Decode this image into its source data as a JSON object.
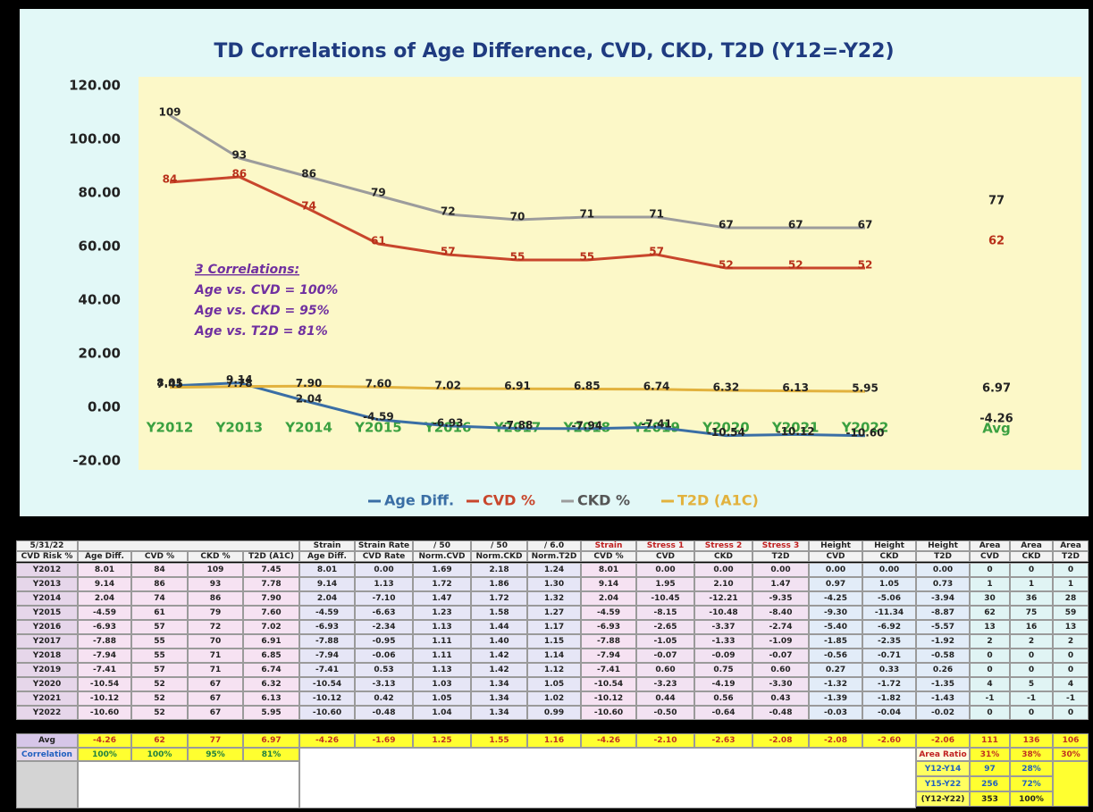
{
  "chart_data": {
    "type": "line",
    "title": "TD Correlations of Age Difference, CVD, CKD, T2D  (Y12=-Y22)",
    "categories": [
      "Y2012",
      "Y2013",
      "Y2014",
      "Y2015",
      "Y2016",
      "Y2017",
      "Y2018",
      "Y2019",
      "Y2020",
      "Y2021",
      "Y2022"
    ],
    "avg_label": "Avg",
    "series": [
      {
        "name": "Age Diff.",
        "color": "#3a6ea5",
        "values": [
          8.01,
          9.14,
          2.04,
          -4.59,
          -6.93,
          -7.88,
          -7.94,
          -7.41,
          -10.54,
          -10.12,
          -10.6
        ],
        "value_labels": [
          "8.01",
          "9.14",
          "2.04",
          "-4.59",
          "-6.93",
          "-7.88",
          "-7.94",
          "-7.41",
          "-10.54",
          "-10.12",
          "-10.60"
        ],
        "avg": -4.26
      },
      {
        "name": "CVD %",
        "color": "#c8462c",
        "values": [
          84,
          86,
          74,
          61,
          57,
          55,
          55,
          57,
          52,
          52,
          52
        ],
        "avg": 62
      },
      {
        "name": "CKD %",
        "color": "#9c9c9c",
        "values": [
          109,
          93,
          86,
          79,
          72,
          70,
          71,
          71,
          67,
          67,
          67
        ],
        "avg": 77
      },
      {
        "name": "T2D (A1C)",
        "color": "#e2b23e",
        "values": [
          7.45,
          7.78,
          7.9,
          7.6,
          7.02,
          6.91,
          6.85,
          6.74,
          6.32,
          6.13,
          5.95
        ],
        "value_labels": [
          "7.45",
          "7.78",
          "7.90",
          "7.60",
          "7.02",
          "6.91",
          "6.85",
          "6.74",
          "6.32",
          "6.13",
          "5.95"
        ],
        "avg": 6.97
      }
    ],
    "ylim": [
      -20,
      120
    ],
    "yticks": [
      {
        "value": -20,
        "label": "-20.00"
      },
      {
        "value": 0,
        "label": "0.00"
      },
      {
        "value": 20,
        "label": "20.00"
      },
      {
        "value": 40,
        "label": "40.00"
      },
      {
        "value": 60,
        "label": "60.00"
      },
      {
        "value": 80,
        "label": "80.00"
      },
      {
        "value": 100,
        "label": "100.00"
      },
      {
        "value": 120,
        "label": "120.00"
      }
    ],
    "grid": false,
    "legend": "bottom",
    "annotations": [
      "3 Correlations:",
      "Age vs. CVD = 100%",
      "Age vs. CKD = 95%",
      "Age vs. T2D = 81%"
    ]
  },
  "table": {
    "date": "5/31/22",
    "group_headers": [
      "Strain",
      "Strain Rate",
      "/ 50",
      "/ 50",
      "/ 6.0",
      "Strain",
      "Stress 1",
      "Stress 2",
      "Stress 3",
      "Height",
      "Height",
      "Height",
      "Area",
      "Area",
      "Area"
    ],
    "row_header": "CVD Risk %",
    "columns": [
      "Age Diff.",
      "CVD %",
      "CKD %",
      "T2D (A1C)",
      "Age Diff.",
      "CVD Rate",
      "Norm.CVD",
      "Norm.CKD",
      "Norm.T2D",
      "CVD %",
      "CVD",
      "CKD",
      "T2D",
      "CVD",
      "CKD",
      "T2D",
      "CVD",
      "CKD",
      "T2D"
    ],
    "rows": [
      {
        "label": "Y2012",
        "cells": [
          "8.01",
          "84",
          "109",
          "7.45",
          "8.01",
          "0.00",
          "1.69",
          "2.18",
          "1.24",
          "8.01",
          "0.00",
          "0.00",
          "0.00",
          "0.00",
          "0.00",
          "0.00",
          "0",
          "0",
          "0"
        ]
      },
      {
        "label": "Y2013",
        "cells": [
          "9.14",
          "86",
          "93",
          "7.78",
          "9.14",
          "1.13",
          "1.72",
          "1.86",
          "1.30",
          "9.14",
          "1.95",
          "2.10",
          "1.47",
          "0.97",
          "1.05",
          "0.73",
          "1",
          "1",
          "1"
        ]
      },
      {
        "label": "Y2014",
        "cells": [
          "2.04",
          "74",
          "86",
          "7.90",
          "2.04",
          "-7.10",
          "1.47",
          "1.72",
          "1.32",
          "2.04",
          "-10.45",
          "-12.21",
          "-9.35",
          "-4.25",
          "-5.06",
          "-3.94",
          "30",
          "36",
          "28"
        ]
      },
      {
        "label": "Y2015",
        "cells": [
          "-4.59",
          "61",
          "79",
          "7.60",
          "-4.59",
          "-6.63",
          "1.23",
          "1.58",
          "1.27",
          "-4.59",
          "-8.15",
          "-10.48",
          "-8.40",
          "-9.30",
          "-11.34",
          "-8.87",
          "62",
          "75",
          "59"
        ]
      },
      {
        "label": "Y2016",
        "cells": [
          "-6.93",
          "57",
          "72",
          "7.02",
          "-6.93",
          "-2.34",
          "1.13",
          "1.44",
          "1.17",
          "-6.93",
          "-2.65",
          "-3.37",
          "-2.74",
          "-5.40",
          "-6.92",
          "-5.57",
          "13",
          "16",
          "13"
        ]
      },
      {
        "label": "Y2017",
        "cells": [
          "-7.88",
          "55",
          "70",
          "6.91",
          "-7.88",
          "-0.95",
          "1.11",
          "1.40",
          "1.15",
          "-7.88",
          "-1.05",
          "-1.33",
          "-1.09",
          "-1.85",
          "-2.35",
          "-1.92",
          "2",
          "2",
          "2"
        ]
      },
      {
        "label": "Y2018",
        "cells": [
          "-7.94",
          "55",
          "71",
          "6.85",
          "-7.94",
          "-0.06",
          "1.11",
          "1.42",
          "1.14",
          "-7.94",
          "-0.07",
          "-0.09",
          "-0.07",
          "-0.56",
          "-0.71",
          "-0.58",
          "0",
          "0",
          "0"
        ]
      },
      {
        "label": "Y2019",
        "cells": [
          "-7.41",
          "57",
          "71",
          "6.74",
          "-7.41",
          "0.53",
          "1.13",
          "1.42",
          "1.12",
          "-7.41",
          "0.60",
          "0.75",
          "0.60",
          "0.27",
          "0.33",
          "0.26",
          "0",
          "0",
          "0"
        ]
      },
      {
        "label": "Y2020",
        "cells": [
          "-10.54",
          "52",
          "67",
          "6.32",
          "-10.54",
          "-3.13",
          "1.03",
          "1.34",
          "1.05",
          "-10.54",
          "-3.23",
          "-4.19",
          "-3.30",
          "-1.32",
          "-1.72",
          "-1.35",
          "4",
          "5",
          "4"
        ]
      },
      {
        "label": "Y2021",
        "cells": [
          "-10.12",
          "52",
          "67",
          "6.13",
          "-10.12",
          "0.42",
          "1.05",
          "1.34",
          "1.02",
          "-10.12",
          "0.44",
          "0.56",
          "0.43",
          "-1.39",
          "-1.82",
          "-1.43",
          "-1",
          "-1",
          "-1"
        ]
      },
      {
        "label": "Y2022",
        "cells": [
          "-10.60",
          "52",
          "67",
          "5.95",
          "-10.60",
          "-0.48",
          "1.04",
          "1.34",
          "0.99",
          "-10.60",
          "-0.50",
          "-0.64",
          "-0.48",
          "-0.03",
          "-0.04",
          "-0.02",
          "0",
          "0",
          "0"
        ]
      }
    ],
    "avg": {
      "label": "Avg",
      "cells": [
        "-4.26",
        "62",
        "77",
        "6.97",
        "-4.26",
        "-1.69",
        "1.25",
        "1.55",
        "1.16",
        "-4.26",
        "-2.10",
        "-2.63",
        "-2.08",
        "-2.08",
        "-2.60",
        "-2.06",
        "111",
        "136",
        "106"
      ]
    },
    "correlation": {
      "label": "Correlation",
      "cells": [
        "100%",
        "100%",
        "95%",
        "81%"
      ]
    },
    "area_ratio": {
      "label": "Area Ratio",
      "cells": [
        "31%",
        "38%",
        "30%"
      ]
    },
    "area_split": [
      {
        "label": "Y12-Y14",
        "cells": [
          "97",
          "28%"
        ]
      },
      {
        "label": "Y15-Y22",
        "cells": [
          "256",
          "72%"
        ]
      },
      {
        "label": "(Y12-Y22)",
        "cells": [
          "353",
          "100%"
        ]
      }
    ]
  }
}
